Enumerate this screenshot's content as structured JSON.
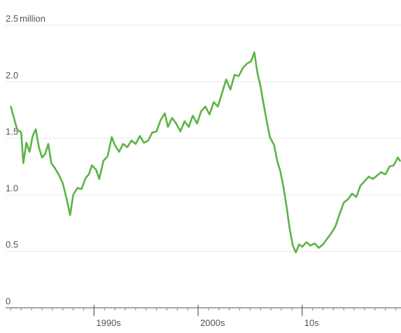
{
  "chart_data": {
    "type": "line",
    "title": "",
    "xlabel": "",
    "ylabel": "",
    "unit_label": "million",
    "ylim": [
      0,
      2.5
    ],
    "xlim": [
      1981.5,
      2019.5
    ],
    "y_ticks": [
      {
        "value": 0,
        "label": "0"
      },
      {
        "value": 0.5,
        "label": "0.5"
      },
      {
        "value": 1.0,
        "label": "1.0"
      },
      {
        "value": 1.5,
        "label": "1.5"
      },
      {
        "value": 2.0,
        "label": "2.0"
      },
      {
        "value": 2.5,
        "label": "2.5"
      }
    ],
    "x_ticks": [
      {
        "value": 1990,
        "label": "1990s"
      },
      {
        "value": 2000,
        "label": "2000s"
      },
      {
        "value": 2010,
        "label": "10s"
      }
    ],
    "grid": true,
    "series": [
      {
        "color": "#5cb346",
        "points": [
          [
            1982.0,
            1.78
          ],
          [
            1982.3,
            1.68
          ],
          [
            1982.6,
            1.58
          ],
          [
            1983.0,
            1.55
          ],
          [
            1983.2,
            1.28
          ],
          [
            1983.5,
            1.46
          ],
          [
            1983.8,
            1.38
          ],
          [
            1984.1,
            1.52
          ],
          [
            1984.4,
            1.58
          ],
          [
            1984.7,
            1.42
          ],
          [
            1985.0,
            1.33
          ],
          [
            1985.3,
            1.36
          ],
          [
            1985.6,
            1.45
          ],
          [
            1985.9,
            1.28
          ],
          [
            1986.2,
            1.24
          ],
          [
            1986.6,
            1.18
          ],
          [
            1987.0,
            1.1
          ],
          [
            1987.4,
            0.95
          ],
          [
            1987.7,
            0.82
          ],
          [
            1988.0,
            1.0
          ],
          [
            1988.4,
            1.06
          ],
          [
            1988.8,
            1.05
          ],
          [
            1989.2,
            1.15
          ],
          [
            1989.5,
            1.18
          ],
          [
            1989.8,
            1.26
          ],
          [
            1990.2,
            1.22
          ],
          [
            1990.5,
            1.14
          ],
          [
            1990.9,
            1.3
          ],
          [
            1991.3,
            1.34
          ],
          [
            1991.7,
            1.51
          ],
          [
            1992.0,
            1.44
          ],
          [
            1992.4,
            1.38
          ],
          [
            1992.8,
            1.45
          ],
          [
            1993.2,
            1.42
          ],
          [
            1993.6,
            1.48
          ],
          [
            1994.0,
            1.45
          ],
          [
            1994.4,
            1.52
          ],
          [
            1994.8,
            1.46
          ],
          [
            1995.2,
            1.48
          ],
          [
            1995.6,
            1.55
          ],
          [
            1996.0,
            1.56
          ],
          [
            1996.4,
            1.66
          ],
          [
            1996.8,
            1.72
          ],
          [
            1997.1,
            1.6
          ],
          [
            1997.5,
            1.68
          ],
          [
            1997.9,
            1.63
          ],
          [
            1998.3,
            1.56
          ],
          [
            1998.7,
            1.65
          ],
          [
            1999.1,
            1.6
          ],
          [
            1999.5,
            1.7
          ],
          [
            1999.9,
            1.63
          ],
          [
            2000.3,
            1.74
          ],
          [
            2000.7,
            1.78
          ],
          [
            2001.1,
            1.71
          ],
          [
            2001.5,
            1.82
          ],
          [
            2001.9,
            1.78
          ],
          [
            2002.3,
            1.9
          ],
          [
            2002.7,
            2.02
          ],
          [
            2003.1,
            1.93
          ],
          [
            2003.5,
            2.06
          ],
          [
            2003.9,
            2.05
          ],
          [
            2004.3,
            2.12
          ],
          [
            2004.7,
            2.16
          ],
          [
            2005.1,
            2.18
          ],
          [
            2005.4,
            2.26
          ],
          [
            2005.7,
            2.08
          ],
          [
            2006.0,
            1.96
          ],
          [
            2006.3,
            1.8
          ],
          [
            2006.6,
            1.65
          ],
          [
            2006.9,
            1.51
          ],
          [
            2007.3,
            1.44
          ],
          [
            2007.6,
            1.3
          ],
          [
            2007.9,
            1.21
          ],
          [
            2008.2,
            1.07
          ],
          [
            2008.5,
            0.9
          ],
          [
            2008.8,
            0.7
          ],
          [
            2009.1,
            0.55
          ],
          [
            2009.4,
            0.49
          ],
          [
            2009.7,
            0.56
          ],
          [
            2010.0,
            0.54
          ],
          [
            2010.4,
            0.58
          ],
          [
            2010.8,
            0.55
          ],
          [
            2011.2,
            0.57
          ],
          [
            2011.6,
            0.53
          ],
          [
            2012.0,
            0.56
          ],
          [
            2012.4,
            0.61
          ],
          [
            2012.8,
            0.66
          ],
          [
            2013.2,
            0.72
          ],
          [
            2013.6,
            0.83
          ],
          [
            2014.0,
            0.93
          ],
          [
            2014.4,
            0.96
          ],
          [
            2014.8,
            1.01
          ],
          [
            2015.2,
            0.98
          ],
          [
            2015.6,
            1.08
          ],
          [
            2016.0,
            1.12
          ],
          [
            2016.4,
            1.16
          ],
          [
            2016.8,
            1.14
          ],
          [
            2017.2,
            1.17
          ],
          [
            2017.6,
            1.2
          ],
          [
            2018.0,
            1.18
          ],
          [
            2018.4,
            1.25
          ],
          [
            2018.8,
            1.26
          ],
          [
            2019.2,
            1.33
          ],
          [
            2019.4,
            1.3
          ]
        ]
      }
    ]
  }
}
